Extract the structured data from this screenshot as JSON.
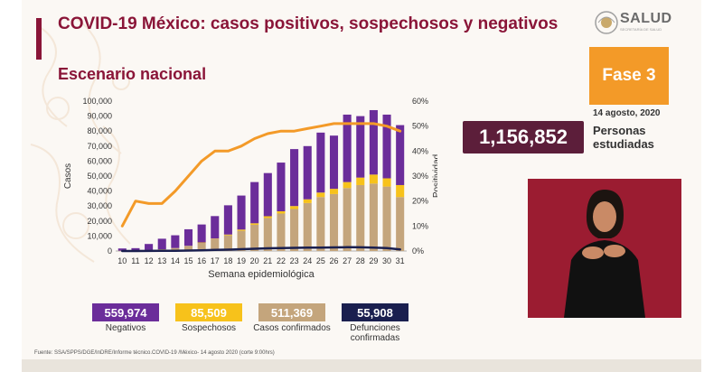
{
  "header": {
    "title": "COVID-19 México: casos positivos, sospechosos y negativos",
    "subtitle": "Escenario nacional"
  },
  "logo": {
    "text": "SALUD",
    "subtext": "SECRETARÍA DE SALUD"
  },
  "phase": {
    "label": "Fase 3",
    "date": "14 agosto, 2020"
  },
  "studied": {
    "count": "1,156,852",
    "label": "Personas estudiadas"
  },
  "colors": {
    "negativos": "#6b2d9a",
    "sospechosos": "#f7c21b",
    "confirmados": "#c4a57c",
    "defunciones": "#1a1f4f",
    "positividad": "#f39a28",
    "brand": "#8a1538"
  },
  "stats": [
    {
      "value": "559,974",
      "label": "Negativos",
      "color": "#6b2d9a"
    },
    {
      "value": "85,509",
      "label": "Sospechosos",
      "color": "#f7c21b"
    },
    {
      "value": "511,369",
      "label": "Casos confirmados",
      "color": "#c4a57c"
    },
    {
      "value": "55,908",
      "label": "Defunciones confirmadas",
      "color": "#1a1f4f"
    }
  ],
  "footer": "Fuente: SSA/SPPS/DGE/InDRE/Informe técnico.COVID-19 /México- 14 agosto 2020 (corte 9:00hrs)",
  "chart_data": {
    "type": "bar",
    "stacked": true,
    "categories": [
      "10",
      "11",
      "12",
      "13",
      "14",
      "15",
      "16",
      "17",
      "18",
      "19",
      "20",
      "21",
      "22",
      "23",
      "24",
      "25",
      "26",
      "27",
      "28",
      "29",
      "30",
      "31"
    ],
    "xlabel": "Semana epidemiológica",
    "ylabel": "Casos",
    "y2label": "Positividad",
    "ylim": [
      0,
      100000
    ],
    "y2lim": [
      0,
      60
    ],
    "yticks": [
      "0",
      "10,000",
      "20,000",
      "30,000",
      "40,000",
      "50,000",
      "60,000",
      "70,000",
      "80,000",
      "90,000",
      "100,000"
    ],
    "y2ticks": [
      "0%",
      "10%",
      "20%",
      "30%",
      "40%",
      "50%",
      "60%"
    ],
    "series": [
      {
        "name": "Casos confirmados",
        "values": [
          200,
          400,
          700,
          1200,
          2000,
          3500,
          5500,
          8000,
          10500,
          13500,
          17500,
          22000,
          25000,
          28000,
          32000,
          36000,
          38000,
          42000,
          44000,
          45000,
          43000,
          36000
        ]
      },
      {
        "name": "Sospechosos",
        "values": [
          0,
          0,
          0,
          0,
          0,
          0,
          200,
          300,
          500,
          800,
          1000,
          1200,
          1500,
          2000,
          2500,
          3000,
          3500,
          4000,
          5000,
          6000,
          5500,
          8000
        ]
      },
      {
        "name": "Negativos",
        "values": [
          1500,
          1500,
          4000,
          7000,
          8500,
          11000,
          12000,
          15000,
          19500,
          22700,
          27500,
          28800,
          32500,
          38000,
          35500,
          40000,
          35500,
          45000,
          41000,
          43000,
          42500,
          40000
        ]
      }
    ],
    "line_series": [
      {
        "name": "Positividad",
        "axis": "y2",
        "values": [
          10,
          20,
          19,
          19,
          24,
          30,
          36,
          40,
          40,
          42,
          45,
          47,
          48,
          48,
          49,
          50,
          51,
          51,
          51,
          51,
          50,
          48
        ]
      },
      {
        "name": "Defunciones",
        "axis": "y",
        "values": [
          10,
          20,
          50,
          100,
          200,
          300,
          500,
          700,
          900,
          1200,
          1500,
          1800,
          2000,
          2100,
          2200,
          2300,
          2400,
          2500,
          2450,
          2300,
          2000,
          1000
        ]
      }
    ]
  }
}
